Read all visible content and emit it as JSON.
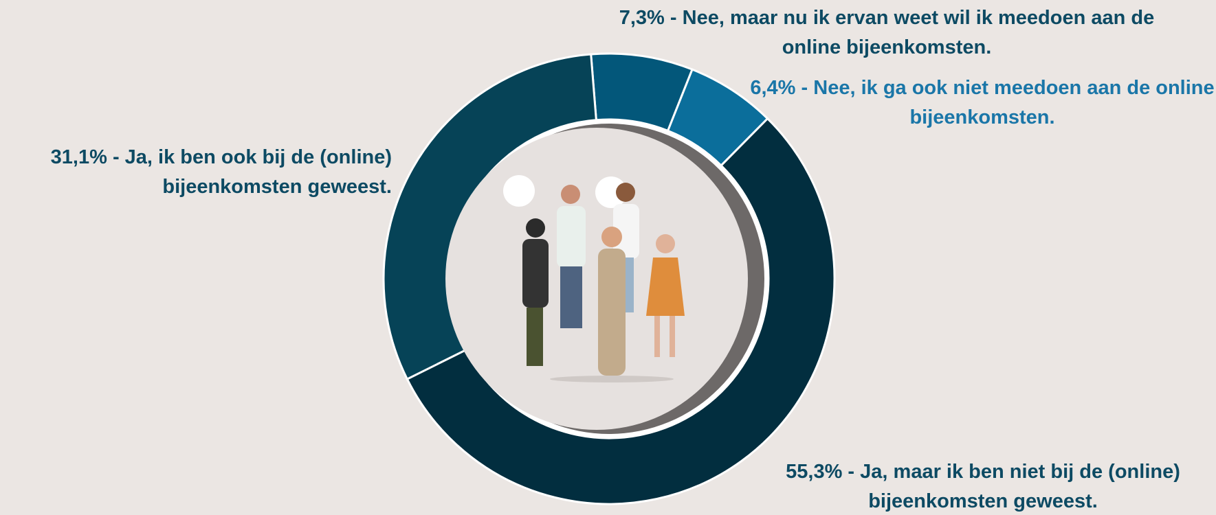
{
  "chart_data": {
    "type": "donut",
    "categories": [
      "Nee, maar nu ik ervan weet wil ik meedoen aan de online bijeenkomsten.",
      "Nee, ik ga ook niet meedoen aan de online bijeenkomsten.",
      "Ja, maar ik ben niet bij de (online) bijeenkomsten geweest.",
      "Ja, ik ben ook bij de (online) bijeenkomsten geweest."
    ],
    "values": [
      7.3,
      6.4,
      55.3,
      31.1
    ],
    "value_labels": [
      "7,3%",
      "6,4%",
      "55,3%",
      "31,1%"
    ],
    "label_separator": "-",
    "colors": [
      "#03577a",
      "#0b6e9b",
      "#022e3f",
      "#064357"
    ],
    "label_colors": [
      "#0d4a63",
      "#1a76a8",
      "#0d4a63",
      "#0d4a63"
    ]
  }
}
